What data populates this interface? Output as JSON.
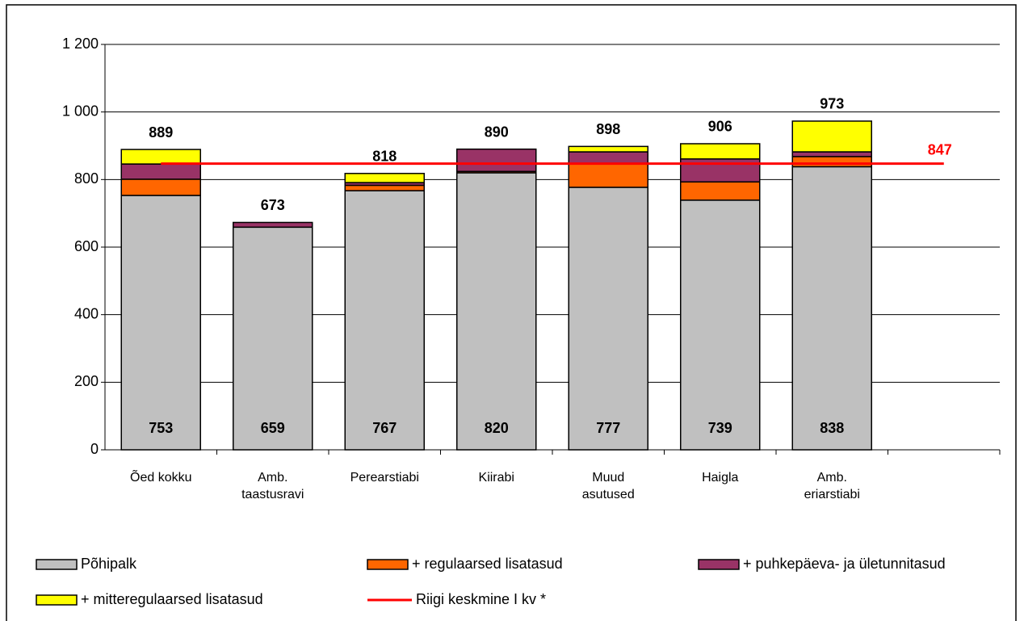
{
  "chart_data": {
    "type": "stacked_bar",
    "categories": [
      "Õed kokku",
      "Amb. taastusravi",
      "Perearstiabi",
      "Kiirabi",
      "Muud asutused",
      "Haigla",
      "Amb. eriarstiabi",
      null
    ],
    "series": [
      {
        "name": "Põhipalk",
        "color": "#c0c0c0",
        "values": [
          753,
          659,
          767,
          820,
          777,
          739,
          838,
          null
        ]
      },
      {
        "name": "+ regulaarsed lisatasud",
        "color": "#ff6600",
        "values": [
          48,
          0,
          16,
          4,
          69,
          54,
          30,
          null
        ]
      },
      {
        "name": "+ puhkepäeva- ja ületunnitasud",
        "color": "#993366",
        "values": [
          45,
          14,
          8,
          66,
          36,
          68,
          14,
          null
        ]
      },
      {
        "name": "+ mitteregulaarsed lisatasud",
        "color": "#ffff00",
        "values": [
          43,
          0,
          27,
          0,
          16,
          45,
          91,
          null
        ]
      }
    ],
    "totals": [
      889,
      673,
      818,
      890,
      898,
      906,
      973,
      null
    ],
    "reference_line": {
      "name": "Riigi keskmine I kv *",
      "value": 847,
      "color": "#ff0000"
    },
    "ylim": [
      0,
      1200
    ],
    "yticks": [
      0,
      200,
      400,
      600,
      800,
      {
        "value": 1000,
        "label": "1 000"
      },
      {
        "value": 1200,
        "label": "1 200"
      }
    ],
    "grid": true
  }
}
